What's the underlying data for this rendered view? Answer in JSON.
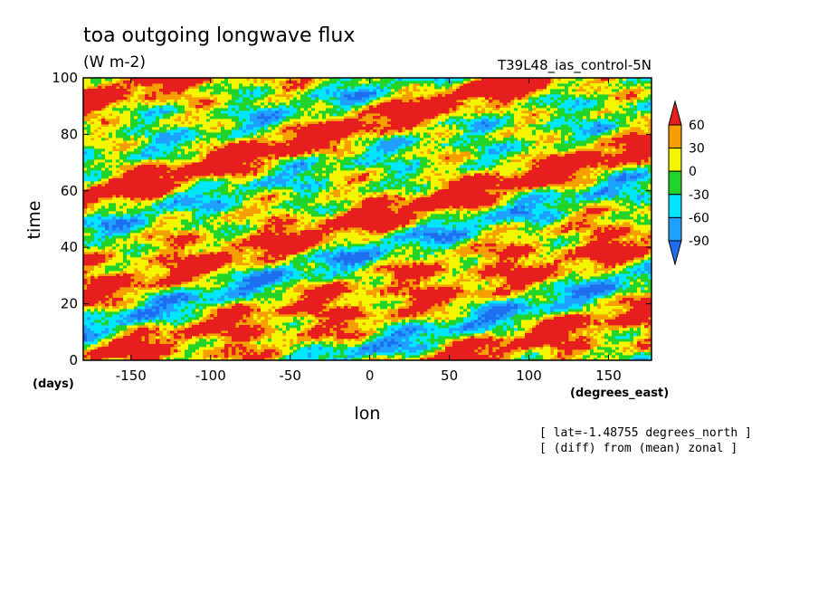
{
  "chart_data": {
    "type": "heatmap",
    "title": "toa outgoing longwave flux",
    "units": "(W m-2)",
    "run_label": "T39L48_ias_control-5N",
    "xlabel": "lon",
    "xunit": "(degrees_east)",
    "ylabel": "time",
    "yunit": "(days)",
    "xlim": [
      -180,
      177
    ],
    "ylim": [
      0,
      100
    ],
    "x_ticks": [
      -150,
      -100,
      -50,
      0,
      50,
      100,
      150
    ],
    "y_ticks": [
      0,
      20,
      40,
      60,
      80,
      100
    ],
    "x_tick_labels": [
      "-150",
      "-100",
      "-50",
      "0",
      "50",
      "100",
      "150"
    ],
    "y_tick_labels": [
      "0",
      "20",
      "40",
      "60",
      "80",
      "100"
    ],
    "color_levels": [
      -90,
      -60,
      -30,
      0,
      30,
      60
    ],
    "level_labels": [
      "60",
      "30",
      "0",
      "-30",
      "-60",
      "-90"
    ],
    "colors": [
      "#1e6ff0",
      "#1fa0ff",
      "#00e6ff",
      "#22d42a",
      "#f5f500",
      "#f5a000",
      "#e61e1e"
    ],
    "annotations": [
      "[ lat=-1.48755 degrees_north ]",
      "[ (diff) from (mean) zonal ]"
    ],
    "note": "Hovmoller diagram of OLR anomaly (difference from zonal mean) versus longitude and time; field dominated by 0 to 30 (orange) with eastward-propagating negative (blue) bands and scattered positive (red) patches."
  }
}
